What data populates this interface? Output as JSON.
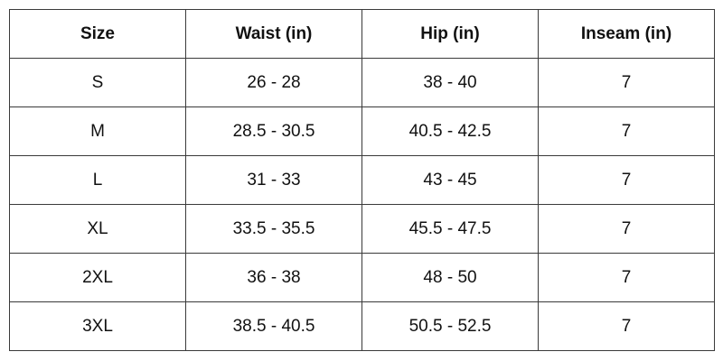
{
  "table": {
    "headers": [
      "Size",
      "Waist (in)",
      "Hip (in)",
      "Inseam (in)"
    ],
    "rows": [
      [
        "S",
        "26 - 28",
        "38 - 40",
        "7"
      ],
      [
        "M",
        "28.5 - 30.5",
        "40.5 - 42.5",
        "7"
      ],
      [
        "L",
        "31 - 33",
        "43 - 45",
        "7"
      ],
      [
        "XL",
        "33.5 - 35.5",
        "45.5 - 47.5",
        "7"
      ],
      [
        "2XL",
        "36 - 38",
        "48 - 50",
        "7"
      ],
      [
        "3XL",
        "38.5 - 40.5",
        "50.5 - 52.5",
        "7"
      ]
    ]
  }
}
